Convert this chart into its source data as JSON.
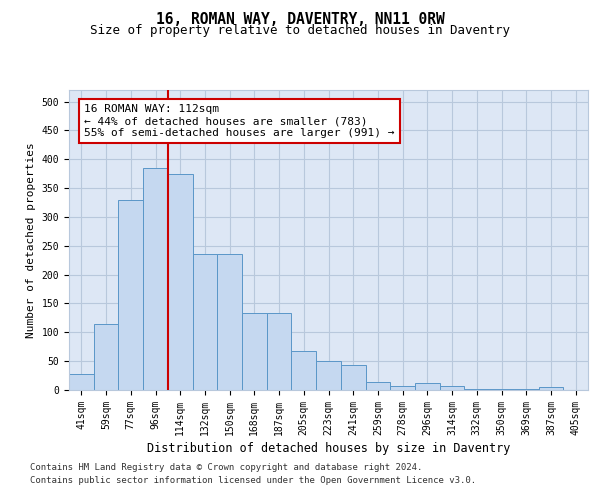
{
  "title": "16, ROMAN WAY, DAVENTRY, NN11 0RW",
  "subtitle": "Size of property relative to detached houses in Daventry",
  "xlabel": "Distribution of detached houses by size in Daventry",
  "ylabel": "Number of detached properties",
  "categories": [
    "41sqm",
    "59sqm",
    "77sqm",
    "96sqm",
    "114sqm",
    "132sqm",
    "150sqm",
    "168sqm",
    "187sqm",
    "205sqm",
    "223sqm",
    "241sqm",
    "259sqm",
    "278sqm",
    "296sqm",
    "314sqm",
    "332sqm",
    "350sqm",
    "369sqm",
    "387sqm",
    "405sqm"
  ],
  "bar_values": [
    27,
    115,
    330,
    385,
    375,
    235,
    235,
    133,
    133,
    68,
    50,
    44,
    14,
    7,
    12,
    7,
    2,
    1,
    1,
    6,
    0
  ],
  "bar_color": "#c5d8f0",
  "bar_edge_color": "#5a96c8",
  "bar_edge_width": 0.7,
  "grid_color": "#b8c8dc",
  "background_color": "#dde7f5",
  "vline_x_index": 3.5,
  "vline_color": "#cc0000",
  "annotation_line1": "16 ROMAN WAY: 112sqm",
  "annotation_line2": "← 44% of detached houses are smaller (783)",
  "annotation_line3": "55% of semi-detached houses are larger (991) →",
  "annotation_box_color": "white",
  "annotation_box_edge_color": "#cc0000",
  "ylim": [
    0,
    520
  ],
  "yticks": [
    0,
    50,
    100,
    150,
    200,
    250,
    300,
    350,
    400,
    450,
    500
  ],
  "footer_line1": "Contains HM Land Registry data © Crown copyright and database right 2024.",
  "footer_line2": "Contains public sector information licensed under the Open Government Licence v3.0.",
  "title_fontsize": 10.5,
  "subtitle_fontsize": 9,
  "tick_fontsize": 7,
  "ylabel_fontsize": 8,
  "xlabel_fontsize": 8.5,
  "annotation_fontsize": 8,
  "footer_fontsize": 6.5
}
